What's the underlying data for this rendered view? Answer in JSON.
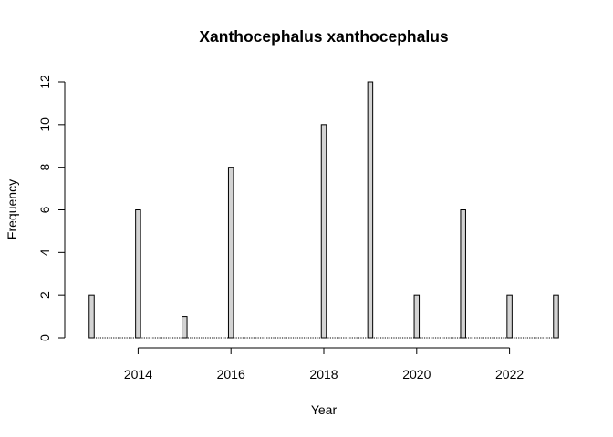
{
  "chart_data": {
    "type": "bar",
    "title": "Xanthocephalus xanthocephalus",
    "xlabel": "Year",
    "ylabel": "Frequency",
    "x": [
      2013,
      2014,
      2015,
      2016,
      2017,
      2018,
      2019,
      2020,
      2021,
      2022,
      2023
    ],
    "values": [
      2,
      6,
      1,
      8,
      0,
      10,
      12,
      2,
      6,
      2,
      2
    ],
    "xlim": [
      2013,
      2023
    ],
    "ylim": [
      0,
      12
    ],
    "x_ticks": [
      "2014",
      "2016",
      "2018",
      "2020",
      "2022"
    ],
    "y_ticks": [
      "0",
      "2",
      "4",
      "6",
      "8",
      "10",
      "12"
    ],
    "grid": false,
    "bar_fill": "#d3d3d3",
    "bar_stroke": "#000000"
  }
}
